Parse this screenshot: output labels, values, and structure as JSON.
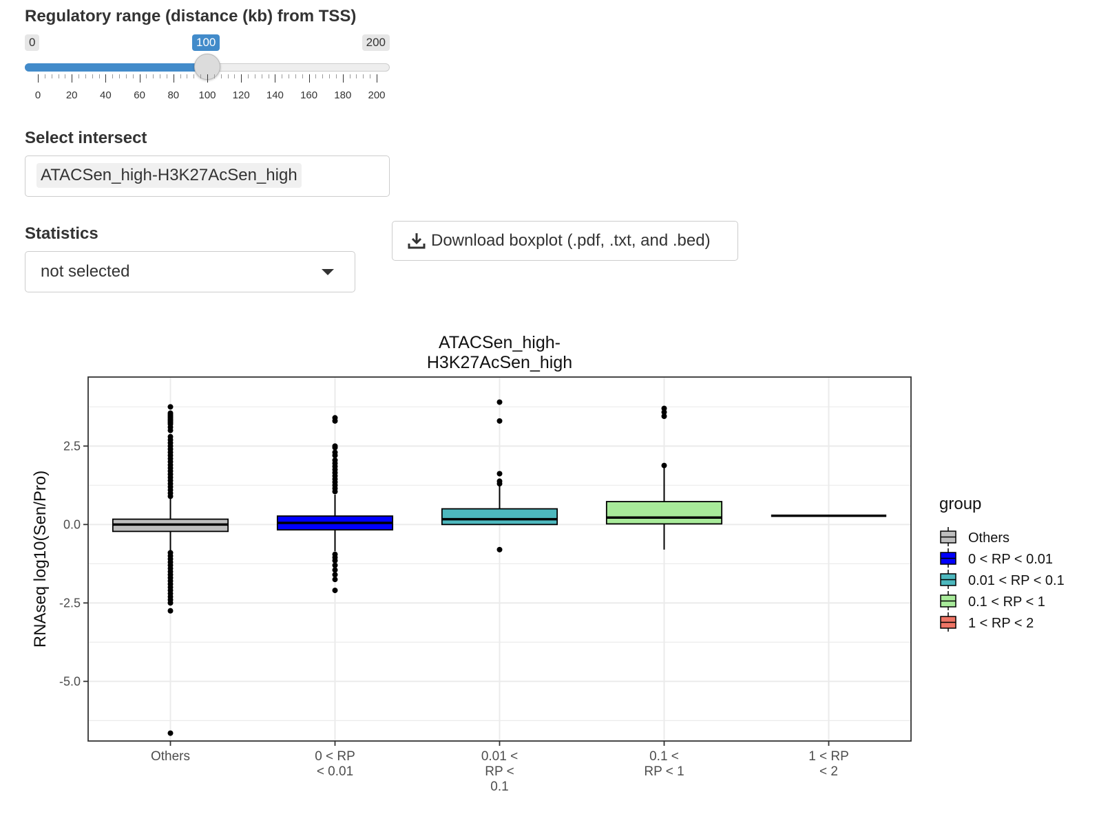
{
  "range_slider": {
    "label": "Regulatory range (distance (kb) from TSS)",
    "min_label": "0",
    "max_label": "200",
    "current_label": "100",
    "min": 0,
    "max": 200,
    "value": 100,
    "tick_labels": [
      "0",
      "20",
      "40",
      "60",
      "80",
      "100",
      "120",
      "140",
      "160",
      "180",
      "200"
    ],
    "accent_color": "#428bca"
  },
  "intersect": {
    "label": "Select intersect",
    "selected": "ATACSen_high-H3K27AcSen_high"
  },
  "statistics": {
    "label": "Statistics",
    "selected": "not selected"
  },
  "download": {
    "label": "Download boxplot (.pdf, .txt, and .bed)",
    "icon": "download-icon"
  },
  "chart_data": {
    "type": "boxplot",
    "title_lines": [
      "ATACSen_high-",
      "H3K27AcSen_high"
    ],
    "ylabel": "RNAseq log10(Sen/Pro)",
    "xlabel": "",
    "ylim": [
      -6.9,
      4.7
    ],
    "yticks": [
      2.5,
      0.0,
      -2.5,
      -5.0
    ],
    "ytick_labels": [
      "2.5",
      "0.0",
      "-2.5",
      "-5.0"
    ],
    "grid": true,
    "legend": {
      "title": "group",
      "position": "right",
      "entries": [
        {
          "label": "Others",
          "color": "#bebebe"
        },
        {
          "label": "0 < RP < 0.01",
          "color": "#0000ff"
        },
        {
          "label": "0.01 < RP < 0.1",
          "color": "#4db8be"
        },
        {
          "label": "0.1 < RP < 1",
          "color": "#a8ea9a"
        },
        {
          "label": "1 < RP < 2",
          "color": "#ef7566"
        }
      ]
    },
    "categories": [
      {
        "label_lines": [
          "Others"
        ],
        "q1": -0.22,
        "median": 0.0,
        "q3": 0.17,
        "whisker_low": -0.85,
        "whisker_high": 0.85,
        "outliers": [
          3.75,
          3.55,
          3.5,
          3.45,
          3.4,
          3.35,
          3.3,
          3.25,
          3.2,
          3.1,
          3.0,
          2.8,
          2.7,
          2.6,
          2.5,
          2.4,
          2.3,
          2.2,
          2.1,
          2.0,
          1.9,
          1.8,
          1.7,
          1.6,
          1.5,
          1.4,
          1.3,
          1.2,
          1.1,
          1.0,
          0.9,
          -0.9,
          -1.0,
          -1.1,
          -1.2,
          -1.3,
          -1.4,
          -1.5,
          -1.6,
          -1.7,
          -1.8,
          -1.9,
          -2.0,
          -2.1,
          -2.2,
          -2.3,
          -2.4,
          -2.5,
          -2.75,
          -6.65
        ]
      },
      {
        "label_lines": [
          "0 < RP",
          "< 0.01"
        ],
        "q1": -0.17,
        "median": 0.05,
        "q3": 0.27,
        "whisker_low": -0.85,
        "whisker_high": 0.95,
        "outliers": [
          3.4,
          3.3,
          2.5,
          2.45,
          2.3,
          2.2,
          2.05,
          1.95,
          1.85,
          1.75,
          1.65,
          1.55,
          1.45,
          1.35,
          1.25,
          1.15,
          1.05,
          -0.95,
          -1.05,
          -1.15,
          -1.3,
          -1.45,
          -1.6,
          -1.75,
          -2.1
        ]
      },
      {
        "label_lines": [
          "0.01 <",
          "RP <",
          "0.1"
        ],
        "q1": 0.0,
        "median": 0.17,
        "q3": 0.5,
        "whisker_low": 0.0,
        "whisker_high": 1.25,
        "outliers": [
          3.9,
          3.3,
          1.62,
          1.38,
          1.3,
          -0.8
        ]
      },
      {
        "label_lines": [
          "0.1 <",
          "RP < 1"
        ],
        "q1": 0.02,
        "median": 0.22,
        "q3": 0.73,
        "whisker_low": -0.8,
        "whisker_high": 1.85,
        "outliers": [
          3.7,
          3.58,
          3.45,
          1.88
        ]
      },
      {
        "label_lines": [
          "1 < RP",
          "< 2"
        ],
        "q1": 0.28,
        "median": 0.28,
        "q3": 0.28,
        "whisker_low": 0.28,
        "whisker_high": 0.28,
        "outliers": []
      }
    ]
  }
}
